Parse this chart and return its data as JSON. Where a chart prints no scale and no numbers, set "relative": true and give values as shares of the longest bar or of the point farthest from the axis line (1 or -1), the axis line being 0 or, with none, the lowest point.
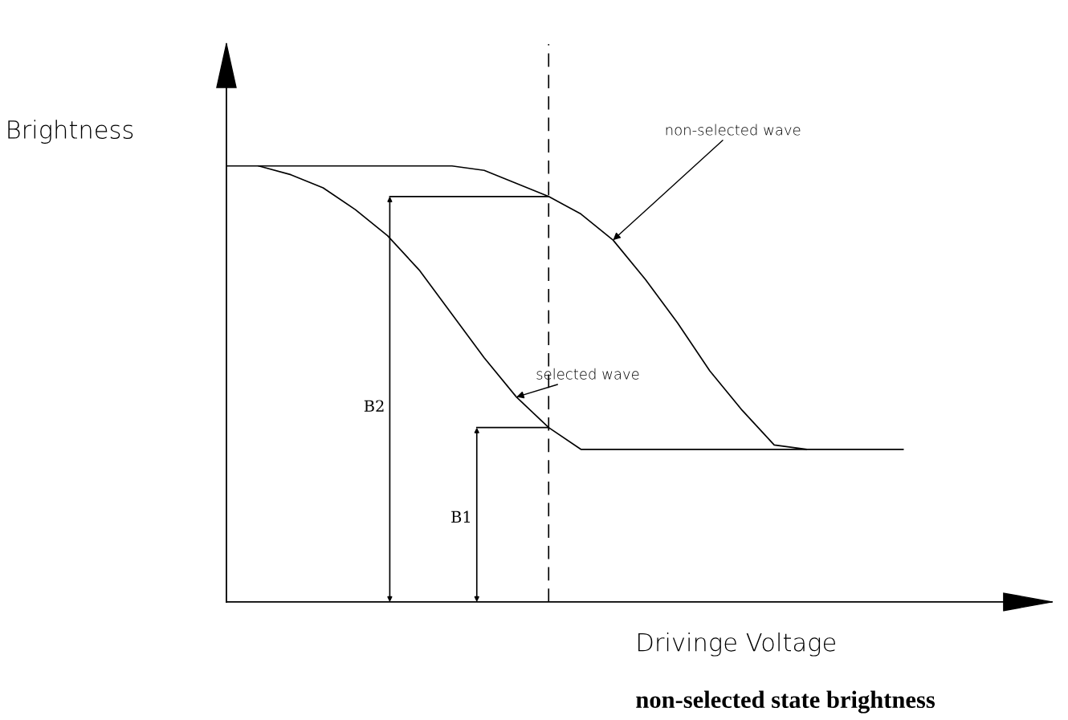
{
  "chart_data": {
    "type": "line",
    "relative": true,
    "title": "non-selected state brightness",
    "xlabel": "Drivinge Voltage",
    "ylabel": "Brightness",
    "categories": [
      null,
      null,
      null,
      null,
      null,
      null,
      null,
      null,
      null,
      null,
      null,
      null,
      null,
      null,
      null,
      null,
      null,
      null,
      null,
      null,
      null,
      null
    ],
    "series": [
      {
        "name": "non-selected wave",
        "color": "#000000",
        "values": [
          1.0,
          1.0,
          1.0,
          1.0,
          1.0,
          1.0,
          1.0,
          1.0,
          0.99,
          0.96,
          0.93,
          0.89,
          0.83,
          0.74,
          0.64,
          0.53,
          0.44,
          0.36,
          0.35,
          null,
          null,
          null
        ]
      },
      {
        "name": "selected wave",
        "color": "#000000",
        "values": [
          null,
          1.0,
          0.98,
          0.95,
          0.9,
          0.84,
          0.76,
          0.66,
          0.56,
          0.47,
          0.4,
          0.35,
          0.35,
          0.35,
          0.35,
          0.35,
          0.35,
          0.35,
          0.35,
          0.35,
          0.35,
          0.35
        ]
      }
    ],
    "annotations": [
      "B2",
      "B1"
    ],
    "marker": "none",
    "line_style": "solid"
  }
}
